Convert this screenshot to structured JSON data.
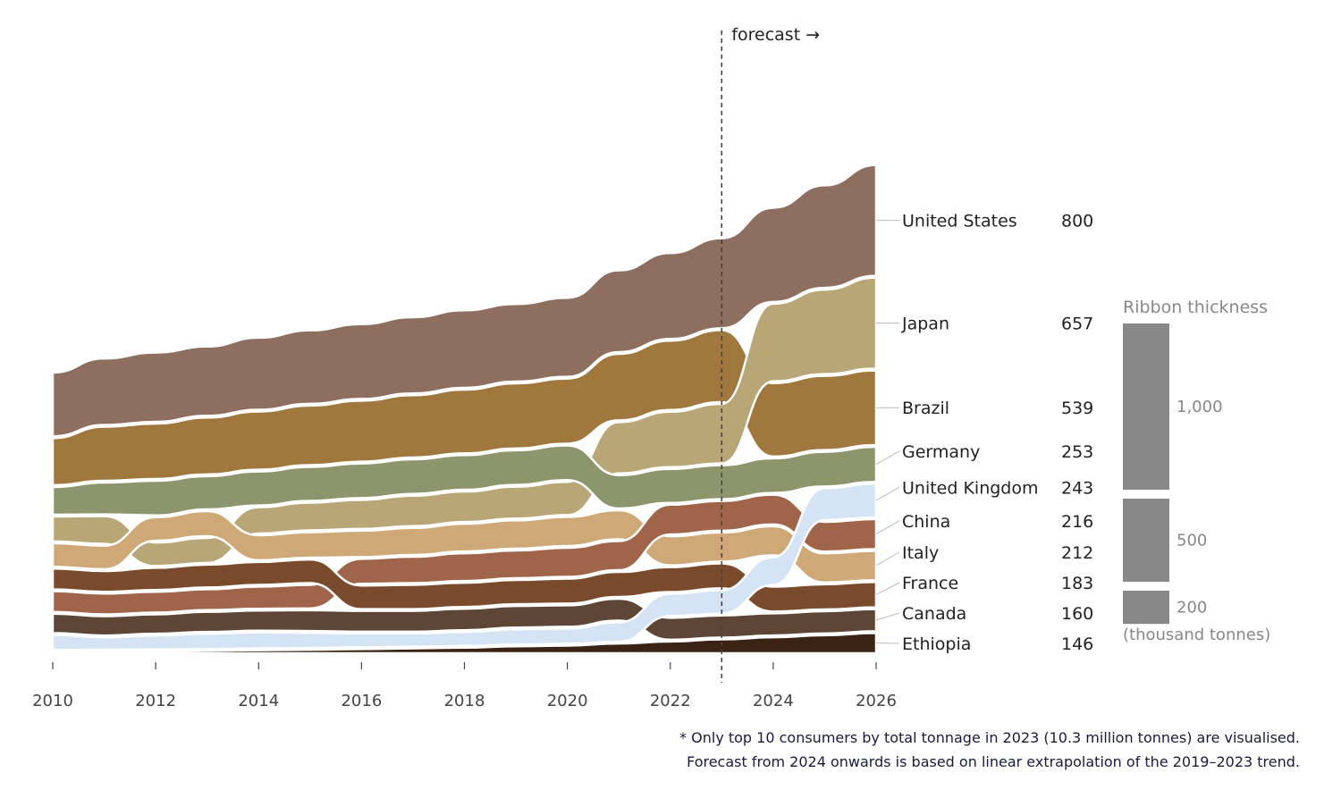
{
  "chart_data": {
    "type": "area",
    "subtype": "ranked-ribbon (bump/stream)",
    "x": [
      2010,
      2011,
      2012,
      2013,
      2014,
      2015,
      2016,
      2017,
      2018,
      2019,
      2020,
      2021,
      2022,
      2023,
      2024,
      2025,
      2026
    ],
    "x_ticks": [
      "2010",
      "2012",
      "2014",
      "2016",
      "2018",
      "2020",
      "2022",
      "2024",
      "2026"
    ],
    "forecast_start": 2023,
    "forecast_label": "forecast →",
    "value_unit": "thousand tonnes",
    "series": [
      {
        "name": "United States",
        "color": "#8d6e5f",
        "label_value": "800",
        "values": [
          460,
          480,
          500,
          500,
          520,
          530,
          540,
          550,
          560,
          560,
          570,
          590,
          620,
          650,
          680,
          740,
          800
        ]
      },
      {
        "name": "Japan",
        "color": "#b8a676",
        "label_value": "657",
        "values": [
          180,
          200,
          170,
          180,
          190,
          200,
          210,
          220,
          220,
          230,
          240,
          370,
          400,
          430,
          560,
          610,
          657
        ]
      },
      {
        "name": "Brazil",
        "color": "#a0783e",
        "label_value": "539",
        "values": [
          340,
          390,
          400,
          410,
          420,
          430,
          440,
          450,
          460,
          470,
          470,
          480,
          500,
          520,
          530,
          535,
          539
        ]
      },
      {
        "name": "Germany",
        "color": "#8d956c",
        "label_value": "253",
        "values": [
          200,
          230,
          250,
          240,
          245,
          245,
          250,
          250,
          250,
          250,
          250,
          240,
          245,
          245,
          250,
          250,
          253
        ]
      },
      {
        "name": "United Kingdom",
        "color": "#d4e4f4",
        "label_value": "243",
        "values": [
          110,
          90,
          100,
          110,
          115,
          110,
          100,
          95,
          100,
          110,
          110,
          140,
          160,
          170,
          200,
          230,
          243
        ]
      },
      {
        "name": "China",
        "color": "#a0644a",
        "label_value": "216",
        "values": [
          150,
          150,
          150,
          150,
          160,
          170,
          180,
          190,
          200,
          200,
          210,
          210,
          215,
          215,
          215,
          215,
          216
        ]
      },
      {
        "name": "Italy",
        "color": "#cfa878",
        "label_value": "212",
        "values": [
          170,
          170,
          170,
          180,
          180,
          185,
          190,
          195,
          200,
          205,
          210,
          210,
          210,
          210,
          210,
          210,
          212
        ]
      },
      {
        "name": "France",
        "color": "#7a4a2c",
        "label_value": "183",
        "values": [
          150,
          150,
          160,
          165,
          165,
          170,
          170,
          175,
          175,
          175,
          180,
          180,
          180,
          180,
          180,
          182,
          183
        ]
      },
      {
        "name": "Canada",
        "color": "#5e4636",
        "label_value": "160",
        "values": [
          140,
          140,
          140,
          145,
          145,
          150,
          150,
          150,
          155,
          155,
          155,
          158,
          158,
          160,
          160,
          160,
          160
        ]
      },
      {
        "name": "Ethiopia",
        "color": "#3a2214",
        "label_value": "146",
        "values": [
          10,
          12,
          15,
          18,
          22,
          25,
          30,
          35,
          40,
          50,
          55,
          70,
          85,
          100,
          115,
          130,
          146
        ]
      }
    ],
    "legend": {
      "title": "Ribbon thickness",
      "items": [
        {
          "value": 1000,
          "label": "1,000"
        },
        {
          "value": 500,
          "label": "500"
        },
        {
          "value": 200,
          "label": "200"
        }
      ],
      "unit_label": "(thousand tonnes)"
    }
  },
  "footnote": {
    "line1": "* Only top 10 consumers by total tonnage in 2023 (10.3 million tonnes) are visualised.",
    "line2": "Forecast from 2024 onwards is based on linear extrapolation of the 2019–2023 trend."
  }
}
